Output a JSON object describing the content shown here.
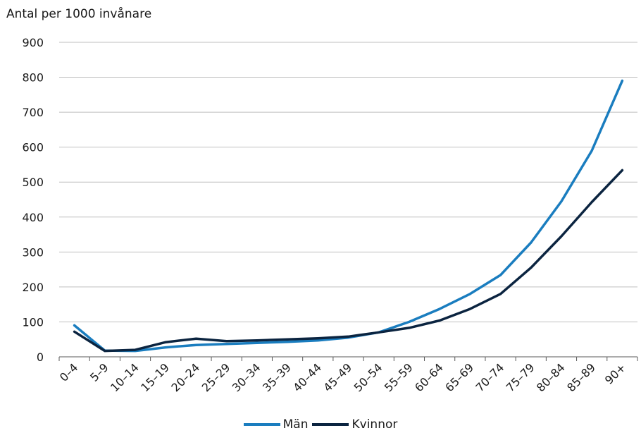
{
  "chart_data": {
    "type": "line",
    "ylabel": "Antal per 1000 invånare",
    "categories": [
      "0–4",
      "5–9",
      "10–14",
      "15–19",
      "20–24",
      "25–29",
      "30–34",
      "35–39",
      "40–44",
      "45–49",
      "50–54",
      "55–59",
      "60–64",
      "65–69",
      "70–74",
      "75–79",
      "80–84",
      "85–89",
      "90+"
    ],
    "ylim": [
      0,
      900
    ],
    "yticks": [
      "0",
      "100",
      "200",
      "300",
      "400",
      "500",
      "600",
      "700",
      "800",
      "900"
    ],
    "grid": true,
    "legend_position": "bottom",
    "series": [
      {
        "name": "Män",
        "color": "#1a7dbf",
        "values": [
          90,
          18,
          17,
          27,
          34,
          37,
          40,
          43,
          47,
          55,
          70,
          100,
          137,
          180,
          234,
          327,
          445,
          590,
          790
        ]
      },
      {
        "name": "Kvinnor",
        "color": "#0b2440",
        "values": [
          72,
          17,
          20,
          42,
          52,
          45,
          47,
          50,
          53,
          58,
          70,
          83,
          104,
          137,
          180,
          255,
          345,
          443,
          534
        ]
      }
    ]
  }
}
